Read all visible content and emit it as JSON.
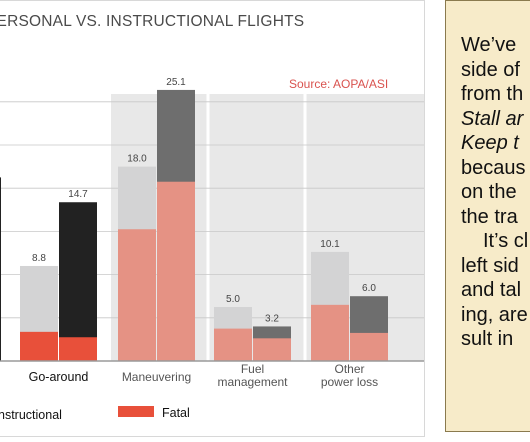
{
  "title": "PERSONAL VS. INSTRUCTIONAL FLIGHTS",
  "source": "Source: AOPA/ASI",
  "colors": {
    "personal": "#d3d3d4",
    "instructional_maneuver": "#6e6e6e",
    "instructional_goaround": "#222222",
    "fatal": "#e8503a",
    "fatal_light": "#e59284",
    "highlight_band": "#e8e8e8",
    "axis": "#9a9a9a"
  },
  "chart_data": {
    "type": "bar",
    "title": "PERSONAL VS. INSTRUCTIONAL FLIGHTS",
    "categories": [
      "Go-around",
      "Maneuvering",
      "Fuel management",
      "Other power loss"
    ],
    "category_lines": [
      [
        "Go-around"
      ],
      [
        "Maneuvering"
      ],
      [
        "Fuel",
        "management"
      ],
      [
        "Other",
        "power loss"
      ]
    ],
    "series": [
      {
        "name": "Personal",
        "values": [
          8.8,
          18.0,
          5.0,
          10.1
        ],
        "fatal": [
          2.7,
          12.2,
          3.0,
          5.2
        ]
      },
      {
        "name": "Instructional",
        "values": [
          14.7,
          25.1,
          3.2,
          6.0
        ],
        "fatal": [
          2.2,
          16.6,
          2.1,
          2.6
        ]
      }
    ],
    "value_labels": {
      "personal": [
        "8.8",
        "18.0",
        "5.0",
        "10.1"
      ],
      "instructional": [
        "14.7",
        "25.1",
        "3.2",
        "6.0"
      ]
    },
    "legend": [
      {
        "name": "Instructional",
        "label": "nstructional"
      },
      {
        "name": "Fatal",
        "label": "Fatal"
      }
    ],
    "ylim": [
      0,
      28
    ],
    "grid": true,
    "highlighted_categories": [
      "Maneuvering",
      "Fuel management",
      "Other power loss"
    ]
  },
  "sidebar": {
    "lines": [
      {
        "text": "We’ve",
        "style": ""
      },
      {
        "text": "side of",
        "style": ""
      },
      {
        "text": "from th",
        "style": ""
      },
      {
        "text": "Stall ar",
        "style": "it"
      },
      {
        "text": "Keep t",
        "style": "it"
      },
      {
        "text": "becaus",
        "style": ""
      },
      {
        "text": "on the",
        "style": ""
      },
      {
        "text": "the tra",
        "style": ""
      },
      {
        "text": "It’s cl",
        "style": "indent"
      },
      {
        "text": "left sid",
        "style": ""
      },
      {
        "text": "and tal",
        "style": ""
      },
      {
        "text": "ing, are",
        "style": ""
      },
      {
        "text": "sult in",
        "style": ""
      }
    ]
  }
}
